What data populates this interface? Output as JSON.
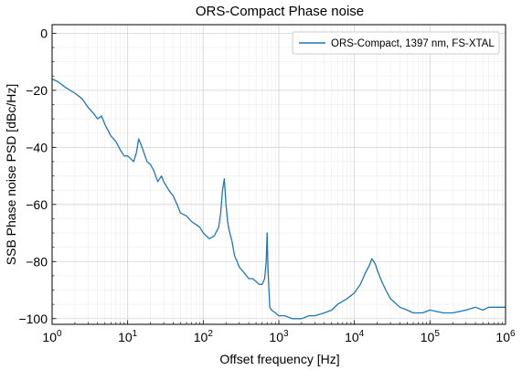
{
  "chart_data": {
    "type": "line",
    "title": "ORS-Compact Phase noise",
    "xlabel": "Offset frequency [Hz]",
    "ylabel": "SSB Phase noise PSD [dBc/Hz]",
    "xscale": "log",
    "xlim": [
      1,
      1000000
    ],
    "ylim": [
      -102,
      3
    ],
    "x_ticks": [
      {
        "value": 1,
        "base": "10",
        "exp": "0"
      },
      {
        "value": 10,
        "base": "10",
        "exp": "1"
      },
      {
        "value": 100,
        "base": "10",
        "exp": "2"
      },
      {
        "value": 1000,
        "base": "10",
        "exp": "3"
      },
      {
        "value": 10000,
        "base": "10",
        "exp": "4"
      },
      {
        "value": 100000,
        "base": "10",
        "exp": "5"
      },
      {
        "value": 1000000,
        "base": "10",
        "exp": "6"
      }
    ],
    "y_ticks": [
      "0",
      "−20",
      "−40",
      "−60",
      "−80",
      "−100"
    ],
    "y_tick_values": [
      0,
      -20,
      -40,
      -60,
      -80,
      -100
    ],
    "grid": "major and minor",
    "legend_position": "top-right",
    "colors": {
      "series": "#1f77b4",
      "grid_major": "#d3d3d3",
      "grid_minor": "#ececec"
    },
    "series": [
      {
        "name": "ORS-Compact, 1397 nm, FS-XTAL",
        "x": [
          1,
          1.2,
          1.5,
          2,
          2.5,
          3,
          3.5,
          4,
          4.5,
          5,
          6,
          7,
          8,
          9,
          10,
          11,
          12,
          13,
          14,
          15,
          16,
          17,
          18,
          20,
          22,
          25,
          28,
          30,
          35,
          40,
          45,
          50,
          60,
          70,
          80,
          90,
          100,
          120,
          140,
          160,
          170,
          180,
          190,
          200,
          210,
          220,
          240,
          260,
          280,
          300,
          350,
          400,
          450,
          500,
          550,
          600,
          650,
          680,
          700,
          720,
          740,
          760,
          800,
          900,
          1000,
          1200,
          1500,
          2000,
          2500,
          3000,
          4000,
          5000,
          6000,
          8000,
          10000,
          12000,
          14000,
          16000,
          17000,
          18000,
          19000,
          20000,
          23000,
          26000,
          30000,
          40000,
          50000,
          60000,
          80000,
          100000,
          150000,
          200000,
          300000,
          400000,
          500000,
          600000,
          800000,
          1000000
        ],
        "y": [
          -16,
          -17,
          -19,
          -21,
          -23,
          -26,
          -28,
          -30,
          -29,
          -32,
          -36,
          -38,
          -41,
          -43,
          -43,
          -44,
          -45,
          -42,
          -37,
          -39,
          -41,
          -43,
          -45,
          -46,
          -48,
          -52,
          -50,
          -52,
          -55,
          -57,
          -60,
          -63,
          -64,
          -66,
          -67,
          -68,
          -70,
          -72,
          -71,
          -68,
          -63,
          -55,
          -51,
          -60,
          -66,
          -69,
          -73,
          -78,
          -80,
          -82,
          -84,
          -86,
          -86,
          -87,
          -88,
          -88,
          -86,
          -80,
          -70,
          -83,
          -90,
          -96,
          -97,
          -98,
          -99,
          -99,
          -100,
          -100,
          -99,
          -99,
          -98,
          -97,
          -95,
          -93,
          -91,
          -88,
          -84,
          -81,
          -79,
          -80,
          -81,
          -83,
          -87,
          -90,
          -93,
          -96,
          -97,
          -98,
          -98,
          -97,
          -98,
          -98,
          -97,
          -96,
          -97,
          -96,
          -96,
          -96
        ]
      }
    ]
  }
}
